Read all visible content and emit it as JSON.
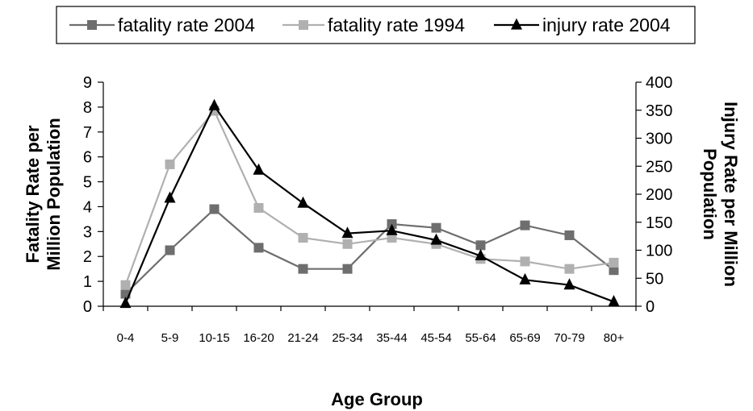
{
  "chart_data": {
    "type": "line",
    "xlabel": "Age Group",
    "ylabel_left": "Fatality Rate per Million Population",
    "ylabel_right": "Injury Rate per Million Population",
    "ylim_left": [
      0,
      9
    ],
    "yticks_left": [
      "0",
      "1",
      "2",
      "3",
      "4",
      "5",
      "6",
      "7",
      "8",
      "9"
    ],
    "ylim_right": [
      0,
      400
    ],
    "yticks_right": [
      "0",
      "50",
      "100",
      "150",
      "200",
      "250",
      "300",
      "350",
      "400"
    ],
    "categories": [
      "0-4",
      "5-9",
      "10-15",
      "16-20",
      "21-24",
      "25-34",
      "35-44",
      "45-54",
      "55-64",
      "65-69",
      "70-79",
      "80+"
    ],
    "legend_position": "top",
    "grid": false,
    "series": [
      {
        "name": "fatality rate 2004",
        "axis": "left",
        "marker": "square",
        "color": "#6e6e6e",
        "values": [
          0.5,
          2.25,
          3.9,
          2.35,
          1.5,
          1.5,
          3.3,
          3.15,
          2.45,
          3.25,
          2.85,
          1.45
        ]
      },
      {
        "name": "fatality rate 1994",
        "axis": "left",
        "marker": "square",
        "color": "#b0b0b0",
        "values": [
          0.85,
          5.7,
          7.85,
          3.95,
          2.75,
          2.5,
          2.75,
          2.5,
          1.9,
          1.8,
          1.5,
          1.75
        ]
      },
      {
        "name": "injury rate 2004",
        "axis": "right",
        "marker": "triangle",
        "color": "#000000",
        "values": [
          5,
          193,
          358,
          243,
          184,
          130,
          135,
          118,
          90,
          47,
          38,
          8
        ]
      }
    ]
  }
}
